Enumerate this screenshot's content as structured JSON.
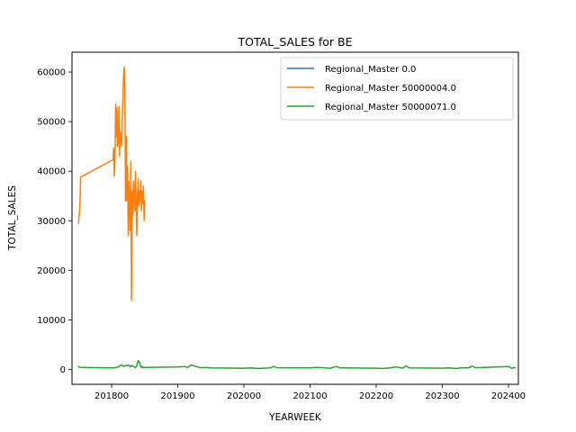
{
  "chart_data": {
    "type": "line",
    "title": "TOTAL_SALES for BE",
    "xlabel": "YEARWEEK",
    "ylabel": "TOTAL_SALES",
    "xlim": [
      201740,
      202415
    ],
    "ylim": [
      -3000,
      64000
    ],
    "xticks": [
      201800,
      201900,
      202000,
      202100,
      202200,
      202300,
      202400
    ],
    "yticks": [
      0,
      10000,
      20000,
      30000,
      40000,
      50000,
      60000
    ],
    "grid": false,
    "legend_position": "top-right",
    "series": [
      {
        "name": "Regional_Master 0.0",
        "color": "#1f77b4",
        "x": [],
        "y": []
      },
      {
        "name": "Regional_Master 50000004.0",
        "color": "#ff7f0e",
        "x": [
          201750,
          201752,
          201753,
          201802,
          201803,
          201804,
          201805,
          201806,
          201807,
          201808,
          201809,
          201810,
          201811,
          201812,
          201813,
          201814,
          201815,
          201816,
          201817,
          201818,
          201819,
          201820,
          201821,
          201822,
          201823,
          201824,
          201825,
          201826,
          201827,
          201828,
          201829,
          201830,
          201831,
          201832,
          201833,
          201834,
          201835,
          201836,
          201837,
          201838,
          201839,
          201840,
          201841,
          201842,
          201843,
          201844,
          201845,
          201846,
          201847,
          201848,
          201849,
          201850
        ],
        "y": [
          29500,
          33000,
          38800,
          42300,
          44700,
          39000,
          43000,
          53500,
          47000,
          52800,
          45000,
          46000,
          53000,
          43000,
          48000,
          46000,
          45000,
          50000,
          55000,
          59000,
          61000,
          56000,
          34000,
          47000,
          34000,
          41000,
          27000,
          38000,
          34000,
          28000,
          42000,
          14000,
          36000,
          31000,
          38000,
          35000,
          32000,
          40000,
          33000,
          27000,
          35000,
          38500,
          33000,
          36000,
          34000,
          38000,
          32000,
          36000,
          33500,
          37000,
          30000,
          34000
        ]
      },
      {
        "name": "Regional_Master 50000071.0",
        "color": "#2ca02c",
        "x": [
          201750,
          201752,
          201800,
          201805,
          201810,
          201815,
          201818,
          201820,
          201822,
          201825,
          201828,
          201830,
          201833,
          201836,
          201838,
          201840,
          201842,
          201844,
          201845,
          201846,
          201847,
          201848,
          201850,
          201900,
          201910,
          201915,
          201920,
          201925,
          201930,
          201935,
          201940,
          201950,
          202000,
          202010,
          202020,
          202030,
          202040,
          202045,
          202050,
          202100,
          202110,
          202120,
          202130,
          202140,
          202145,
          202150,
          202200,
          202210,
          202220,
          202230,
          202240,
          202245,
          202250,
          202300,
          202310,
          202320,
          202330,
          202340,
          202345,
          202350,
          202400,
          202405,
          202408,
          202410
        ],
        "y": [
          600,
          400,
          300,
          350,
          500,
          900,
          600,
          800,
          700,
          900,
          500,
          800,
          600,
          400,
          700,
          1800,
          1400,
          600,
          400,
          500,
          600,
          300,
          400,
          500,
          600,
          400,
          900,
          700,
          500,
          300,
          400,
          300,
          250,
          300,
          200,
          250,
          300,
          600,
          350,
          300,
          400,
          350,
          250,
          600,
          300,
          300,
          250,
          200,
          300,
          500,
          250,
          700,
          300,
          250,
          300,
          200,
          350,
          300,
          700,
          350,
          600,
          200,
          400,
          300
        ]
      }
    ]
  }
}
